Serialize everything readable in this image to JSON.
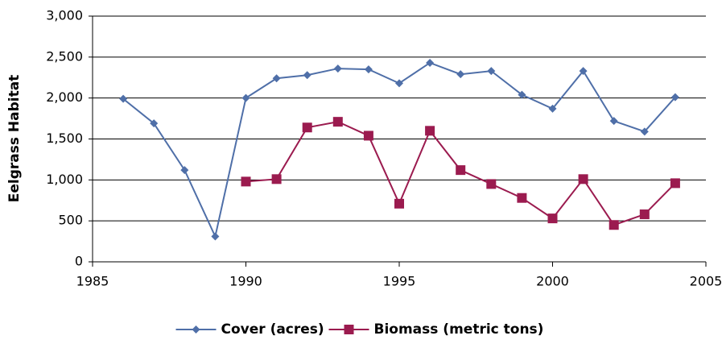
{
  "chart_data": {
    "type": "line",
    "y_label": "Eelgrass Habitat",
    "x": [
      1986,
      1987,
      1988,
      1989,
      1990,
      1991,
      1992,
      1993,
      1994,
      1995,
      1996,
      1997,
      1998,
      1999,
      2000,
      2001,
      2002,
      2003,
      2004
    ],
    "series": [
      {
        "name": "Cover (acres)",
        "color": "#4f6fa8",
        "marker": "diamond",
        "values": [
          1990,
          1690,
          1120,
          310,
          2000,
          2240,
          2280,
          2360,
          2350,
          2180,
          2430,
          2290,
          2330,
          2040,
          1870,
          2330,
          1720,
          1590,
          2010
        ]
      },
      {
        "name": "Biomass (metric tons)",
        "color": "#9b1b4f",
        "marker": "square",
        "values": [
          null,
          null,
          null,
          null,
          980,
          1010,
          1640,
          1710,
          1540,
          710,
          1600,
          1120,
          950,
          780,
          530,
          1010,
          450,
          580,
          960
        ]
      }
    ],
    "xlim": [
      1985,
      2005
    ],
    "xticks": [
      1985,
      1990,
      1995,
      2000,
      2005
    ],
    "ylim": [
      0,
      3000
    ],
    "yticks": [
      0,
      {
        "value": 500,
        "label": "500"
      },
      {
        "value": 1000,
        "label": "1,000"
      },
      {
        "value": 1500,
        "label": "1,500"
      },
      {
        "value": 2000,
        "label": "2,000"
      },
      {
        "value": 2500,
        "label": "2,500"
      },
      {
        "value": 3000,
        "label": "3,000"
      }
    ],
    "grid": true,
    "legend": "bottom"
  }
}
